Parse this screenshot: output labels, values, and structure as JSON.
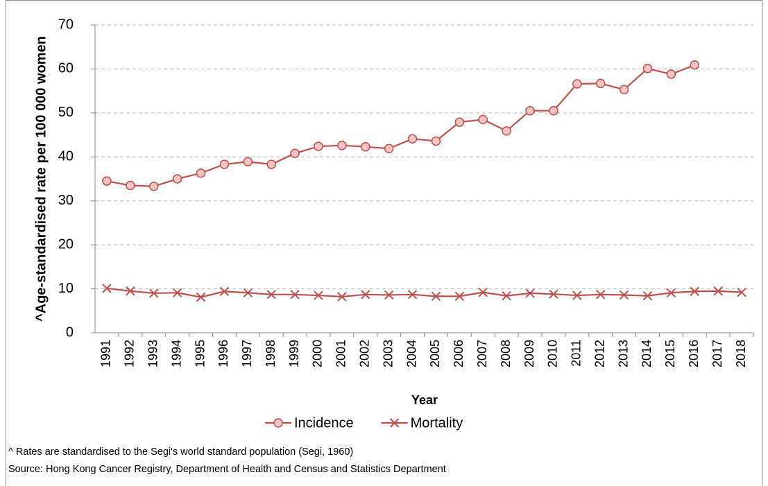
{
  "chart_data": {
    "type": "line",
    "y_label": "^Age-standardised rate per 100 000 women",
    "x_label": "Year",
    "categories": [
      "1991",
      "1992",
      "1993",
      "1994",
      "1995",
      "1996",
      "1997",
      "1998",
      "1999",
      "2000",
      "2001",
      "2002",
      "2003",
      "2004",
      "2005",
      "2006",
      "2007",
      "2008",
      "2009",
      "2010",
      "2011",
      "2012",
      "2013",
      "2014",
      "2015",
      "2016",
      "2017",
      "2018"
    ],
    "series": [
      {
        "name": "Incidence",
        "color": "#c0504d",
        "marker": "circle",
        "marker_fill": "#f2c4c3",
        "values": [
          34.5,
          33.5,
          33.3,
          35.0,
          36.3,
          38.3,
          38.9,
          38.3,
          40.8,
          42.4,
          42.6,
          42.3,
          41.9,
          44.1,
          43.6,
          47.9,
          48.5,
          45.9,
          50.5,
          50.5,
          56.6,
          56.7,
          55.3,
          60.1,
          58.8,
          60.9,
          null,
          null
        ]
      },
      {
        "name": "Mortality",
        "color": "#c0504d",
        "marker": "x",
        "values": [
          10.1,
          9.5,
          9.0,
          9.1,
          8.1,
          9.4,
          9.1,
          8.7,
          8.7,
          8.5,
          8.2,
          8.7,
          8.6,
          8.7,
          8.3,
          8.3,
          9.2,
          8.4,
          9.0,
          8.8,
          8.5,
          8.7,
          8.6,
          8.4,
          9.1,
          9.4,
          9.5,
          9.2
        ]
      }
    ],
    "ylim": [
      0,
      70
    ],
    "yticks": [
      0,
      10,
      20,
      30,
      40,
      50,
      60,
      70
    ],
    "grid": true,
    "legend": "bottom",
    "notes": [
      "^ Rates are standardised to the Segi's world standard population (Segi, 1960)",
      "Source: Hong Kong Cancer Registry, Department of Health and Census and Statistics Department"
    ]
  }
}
